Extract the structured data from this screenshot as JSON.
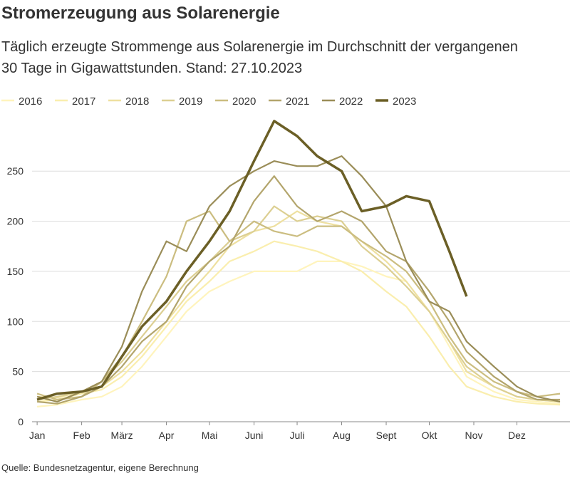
{
  "chart_data": {
    "type": "line",
    "title": "Stromerzeugung aus Solarenergie",
    "subtitle": "Täglich erzeugte Strommenge aus Solarenergie im Durchschnitt der vergangenen 30 Tage in Gigawattstunden. Stand: 27.10.2023",
    "source": "Quelle: Bundesnetzagentur, eigene Berechnung",
    "x": [
      1,
      15,
      32,
      46,
      60,
      74,
      91,
      105,
      121,
      135,
      152,
      166,
      182,
      196,
      213,
      227,
      244,
      258,
      274,
      288,
      300,
      319,
      335,
      349,
      365
    ],
    "xlim": [
      -6,
      367
    ],
    "xticks": [
      {
        "value": 1,
        "label": "Jan"
      },
      {
        "value": 32,
        "label": "Feb"
      },
      {
        "value": 60,
        "label": "März"
      },
      {
        "value": 91,
        "label": "Apr"
      },
      {
        "value": 121,
        "label": "Mai"
      },
      {
        "value": 152,
        "label": "Juni"
      },
      {
        "value": 182,
        "label": "Juli"
      },
      {
        "value": 213,
        "label": "Aug"
      },
      {
        "value": 244,
        "label": "Sept"
      },
      {
        "value": 274,
        "label": "Okt"
      },
      {
        "value": 305,
        "label": "Nov"
      },
      {
        "value": 335,
        "label": "Dez"
      }
    ],
    "ylim": [
      0,
      307
    ],
    "yticks": [
      0,
      50,
      100,
      150,
      200,
      250
    ],
    "grid": true,
    "series": [
      {
        "name": "2016",
        "color": "#fff4bd",
        "values": [
          15,
          17,
          22,
          25,
          35,
          55,
          85,
          110,
          130,
          140,
          150,
          150,
          150,
          160,
          160,
          155,
          145,
          140,
          110,
          75,
          45,
          30,
          22,
          20,
          18
        ]
      },
      {
        "name": "2017",
        "color": "#faeeae",
        "values": [
          20,
          22,
          28,
          32,
          45,
          65,
          95,
          120,
          140,
          160,
          170,
          180,
          175,
          170,
          160,
          150,
          130,
          115,
          85,
          55,
          35,
          25,
          20,
          18,
          17
        ]
      },
      {
        "name": "2018",
        "color": "#eee0a0",
        "values": [
          25,
          24,
          30,
          35,
          50,
          70,
          100,
          125,
          150,
          175,
          190,
          195,
          210,
          200,
          195,
          180,
          160,
          140,
          110,
          80,
          50,
          35,
          25,
          22,
          20
        ]
      },
      {
        "name": "2019",
        "color": "#dccf92",
        "values": [
          22,
          25,
          30,
          40,
          60,
          85,
          115,
          140,
          160,
          180,
          190,
          215,
          200,
          205,
          200,
          175,
          155,
          135,
          110,
          80,
          55,
          35,
          25,
          22,
          20
        ]
      },
      {
        "name": "2020",
        "color": "#cbbd80",
        "values": [
          28,
          22,
          25,
          40,
          65,
          100,
          145,
          200,
          210,
          180,
          200,
          190,
          185,
          195,
          195,
          180,
          165,
          150,
          120,
          85,
          60,
          40,
          30,
          25,
          28
        ]
      },
      {
        "name": "2021",
        "color": "#b3a56c",
        "values": [
          20,
          18,
          25,
          35,
          55,
          80,
          100,
          135,
          160,
          175,
          220,
          245,
          215,
          200,
          210,
          200,
          170,
          160,
          130,
          100,
          70,
          45,
          30,
          22,
          22
        ]
      },
      {
        "name": "2022",
        "color": "#9a8d58",
        "values": [
          25,
          20,
          30,
          40,
          75,
          130,
          180,
          170,
          215,
          235,
          250,
          260,
          255,
          255,
          265,
          245,
          215,
          160,
          120,
          110,
          80,
          55,
          35,
          25,
          20
        ]
      },
      {
        "name": "2023",
        "color": "#6b5f26",
        "values": [
          22,
          28,
          30,
          35,
          65,
          95,
          120,
          150,
          180,
          210,
          260,
          300,
          285,
          265,
          250,
          210,
          215,
          225,
          220,
          170,
          125,
          null,
          null,
          null,
          null
        ]
      }
    ]
  }
}
